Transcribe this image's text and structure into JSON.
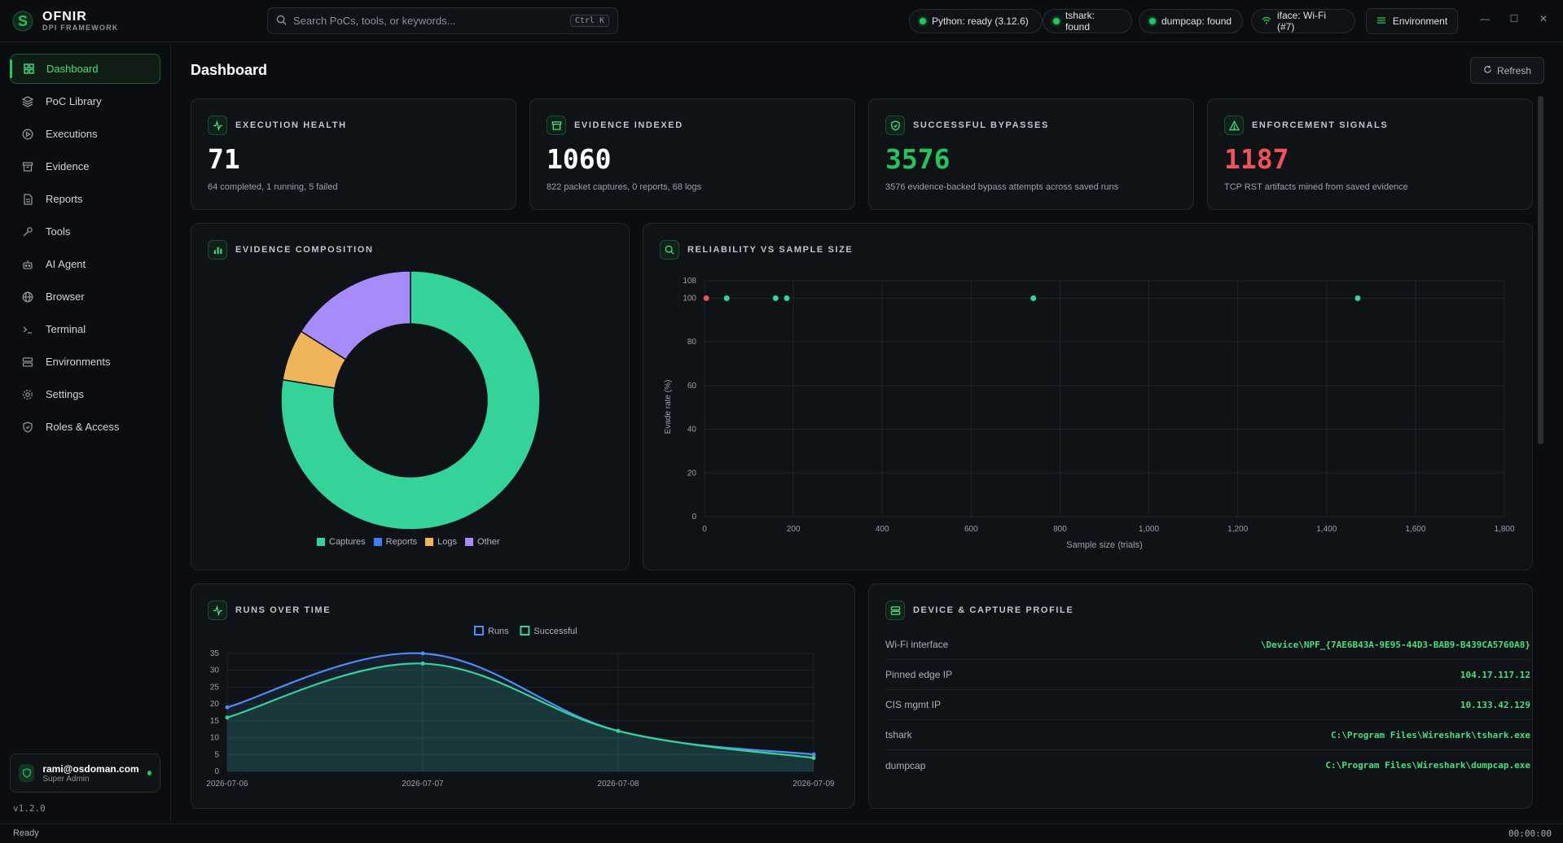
{
  "app": {
    "name": "OFNIR",
    "subtitle": "DPI FRAMEWORK",
    "version": "v1.2.0"
  },
  "search": {
    "placeholder": "Search PoCs, tools, or keywords...",
    "shortcut": "Ctrl K"
  },
  "status_pills": [
    {
      "label": "Python: ready (3.12.6)",
      "state": "ok"
    },
    {
      "label": "tshark: found",
      "state": "ok"
    },
    {
      "label": "dumpcap: found",
      "state": "ok"
    },
    {
      "label": "iface: Wi-Fi (#7)",
      "icon": "wifi-icon"
    }
  ],
  "environment_label": "Environment",
  "sidebar": {
    "items": [
      {
        "label": "Dashboard",
        "icon": "grid-icon",
        "active": true
      },
      {
        "label": "PoC Library",
        "icon": "layers-icon"
      },
      {
        "label": "Executions",
        "icon": "play-circle-icon"
      },
      {
        "label": "Evidence",
        "icon": "archive-icon"
      },
      {
        "label": "Reports",
        "icon": "file-icon"
      },
      {
        "label": "Tools",
        "icon": "wrench-icon"
      },
      {
        "label": "AI Agent",
        "icon": "bot-icon"
      },
      {
        "label": "Browser",
        "icon": "globe-icon"
      },
      {
        "label": "Terminal",
        "icon": "terminal-icon"
      },
      {
        "label": "Environments",
        "icon": "server-icon"
      },
      {
        "label": "Settings",
        "icon": "gear-icon"
      },
      {
        "label": "Roles & Access",
        "icon": "shield-icon"
      }
    ],
    "user": {
      "email": "rami@osdoman.com",
      "role": "Super Admin"
    }
  },
  "page": {
    "title": "Dashboard",
    "refresh_label": "Refresh"
  },
  "stats": [
    {
      "title": "Execution Health",
      "value": "71",
      "sub": "64 completed, 1 running, 5 failed",
      "color": "#ffffff",
      "icon": "activity-icon"
    },
    {
      "title": "Evidence Indexed",
      "value": "1060",
      "sub": "822 packet captures, 0 reports, 68 logs",
      "color": "#ffffff",
      "icon": "archive-icon"
    },
    {
      "title": "Successful Bypasses",
      "value": "3576",
      "sub": "3576 evidence-backed bypass attempts across saved runs",
      "color": "#22c55e",
      "icon": "shield-check-icon"
    },
    {
      "title": "Enforcement Signals",
      "value": "1187",
      "sub": "TCP RST artifacts mined from saved evidence",
      "color": "#f0525a",
      "icon": "alert-triangle-icon"
    }
  ],
  "colors": {
    "accent": "#22c55e",
    "captures": "#34d399",
    "reports": "#3b82f6",
    "logs": "#f0b45a",
    "other": "#a78bfa",
    "danger": "#f0525a"
  },
  "chart_data": [
    {
      "type": "pie",
      "title": "Evidence Composition",
      "categories": [
        "Captures",
        "Reports",
        "Logs",
        "Other"
      ],
      "values": [
        822,
        0,
        68,
        170
      ],
      "colors": [
        "#34d399",
        "#3b82f6",
        "#f0b45a",
        "#a78bfa"
      ],
      "legend": "bottom"
    },
    {
      "type": "scatter",
      "title": "Reliability vs Sample Size",
      "xlabel": "Sample size (trials)",
      "ylabel": "Evade rate (%)",
      "xlim": [
        0,
        1800
      ],
      "ylim": [
        0,
        108
      ],
      "xticks": [
        0,
        200,
        400,
        600,
        800,
        1000,
        1200,
        1400,
        1600,
        1800
      ],
      "xtick_labels": [
        "0",
        "200",
        "400",
        "600",
        "800",
        "1,000",
        "1,200",
        "1,400",
        "1,600",
        "1,800"
      ],
      "yticks": [
        0,
        20,
        40,
        60,
        80,
        100,
        108
      ],
      "points": [
        {
          "x": 4,
          "y": 100,
          "color": "#f0525a"
        },
        {
          "x": 50,
          "y": 100,
          "color": "#34d399"
        },
        {
          "x": 160,
          "y": 100,
          "color": "#34d399"
        },
        {
          "x": 185,
          "y": 100,
          "color": "#34d399"
        },
        {
          "x": 740,
          "y": 100,
          "color": "#34d399"
        },
        {
          "x": 1470,
          "y": 100,
          "color": "#34d399"
        }
      ],
      "grid": true
    },
    {
      "type": "area",
      "title": "Runs Over Time",
      "categories": [
        "2026-07-06",
        "2026-07-07",
        "2026-07-08",
        "2026-07-09"
      ],
      "ylim": [
        0,
        35
      ],
      "yticks": [
        0,
        5,
        10,
        15,
        20,
        25,
        30,
        35
      ],
      "series": [
        {
          "name": "Runs",
          "values": [
            19,
            35,
            12,
            5
          ],
          "color": "#4d8df5"
        },
        {
          "name": "Successful",
          "values": [
            16,
            32,
            12,
            4
          ],
          "color": "#34d399"
        }
      ],
      "legend": "top"
    }
  ],
  "device_profile": {
    "title": "Device & Capture Profile",
    "rows": [
      {
        "key": "Wi-Fi interface",
        "value": "\\Device\\NPF_{7AE6B43A-9E95-44D3-BAB9-B439CA5760A8}"
      },
      {
        "key": "Pinned edge IP",
        "value": "104.17.117.12"
      },
      {
        "key": "CIS mgmt IP",
        "value": "10.133.42.129"
      },
      {
        "key": "tshark",
        "value": "C:\\Program Files\\Wireshark\\tshark.exe"
      },
      {
        "key": "dumpcap",
        "value": "C:\\Program Files\\Wireshark\\dumpcap.exe"
      }
    ]
  },
  "statusbar": {
    "left": "Ready",
    "right": "00:00:00"
  }
}
